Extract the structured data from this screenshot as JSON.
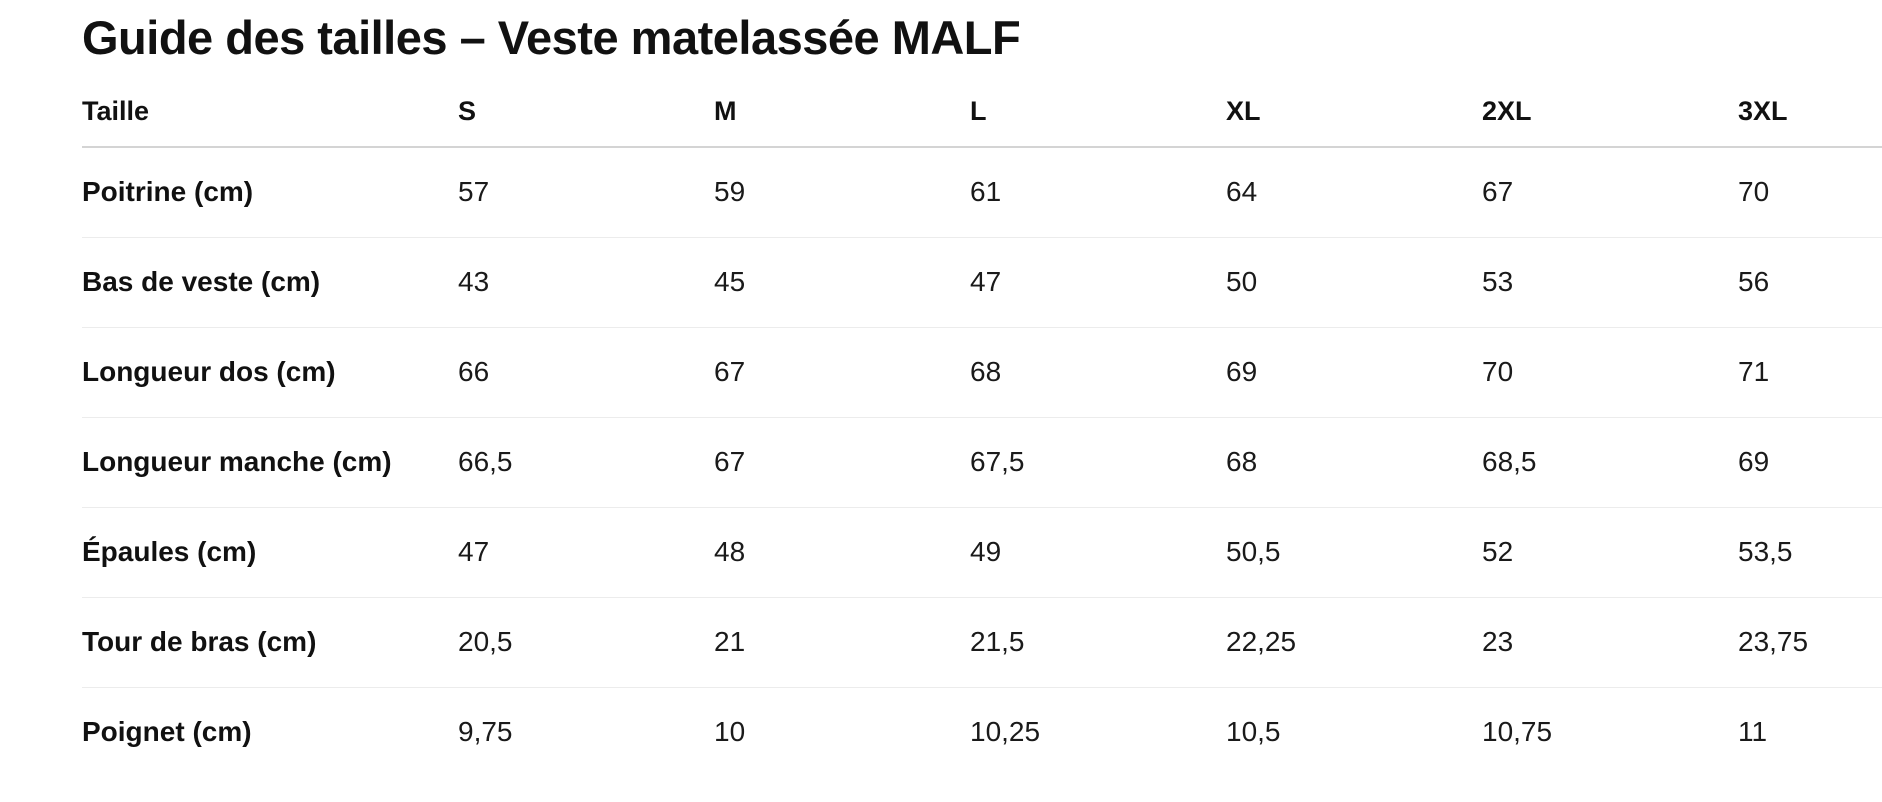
{
  "title": "Guide des tailles – Veste matelassée MALF",
  "table": {
    "header": [
      "Taille",
      "S",
      "M",
      "L",
      "XL",
      "2XL",
      "3XL"
    ],
    "rows": [
      {
        "label": "Poitrine (cm)",
        "values": [
          "57",
          "59",
          "61",
          "64",
          "67",
          "70"
        ]
      },
      {
        "label": "Bas de veste (cm)",
        "values": [
          "43",
          "45",
          "47",
          "50",
          "53",
          "56"
        ]
      },
      {
        "label": "Longueur dos (cm)",
        "values": [
          "66",
          "67",
          "68",
          "69",
          "70",
          "71"
        ]
      },
      {
        "label": "Longueur manche (cm)",
        "values": [
          "66,5",
          "67",
          "67,5",
          "68",
          "68,5",
          "69"
        ]
      },
      {
        "label": "Épaules (cm)",
        "values": [
          "47",
          "48",
          "49",
          "50,5",
          "52",
          "53,5"
        ]
      },
      {
        "label": "Tour de bras (cm)",
        "values": [
          "20,5",
          "21",
          "21,5",
          "22,25",
          "23",
          "23,75"
        ]
      },
      {
        "label": "Poignet (cm)",
        "values": [
          "9,75",
          "10",
          "10,25",
          "10,5",
          "10,75",
          "11"
        ]
      }
    ]
  }
}
